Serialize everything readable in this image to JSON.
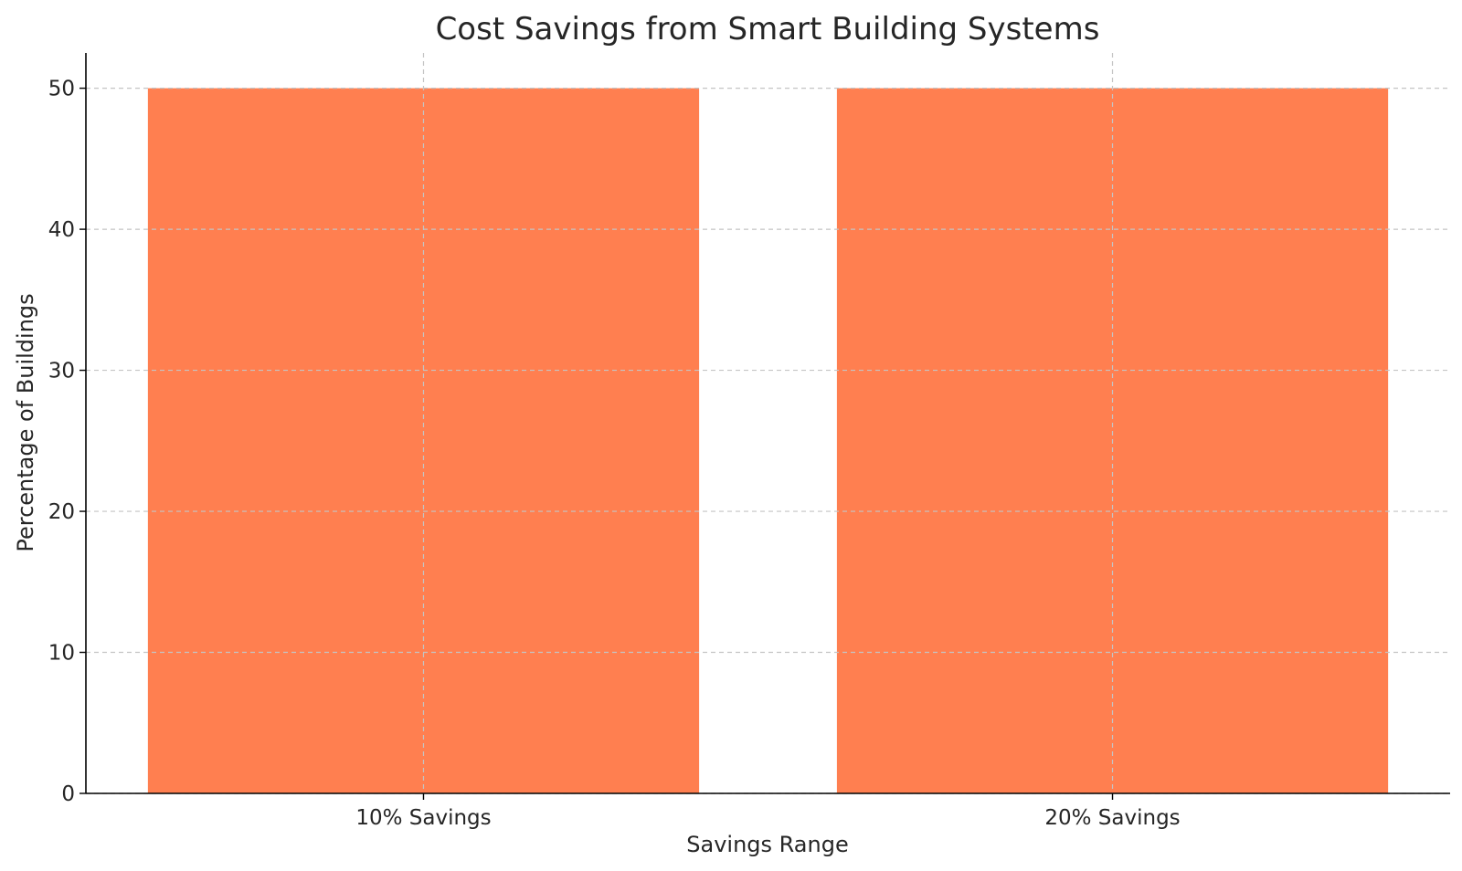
{
  "chart_data": {
    "type": "bar",
    "title": "Cost Savings from Smart Building Systems",
    "xlabel": "Savings Range",
    "ylabel": "Percentage of Buildings",
    "categories": [
      "10% Savings",
      "20% Savings"
    ],
    "values": [
      50,
      50
    ],
    "ylim": [
      0,
      52.5
    ],
    "yticks": [
      0,
      10,
      20,
      30,
      40,
      50
    ],
    "bar_color": "#ff7f50",
    "grid": true
  }
}
